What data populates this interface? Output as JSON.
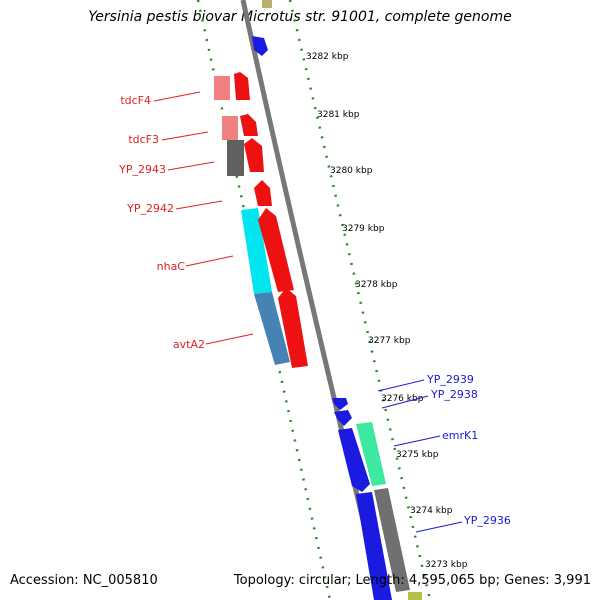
{
  "title": "Yersinia pestis biovar Microtus str. 91001, complete genome",
  "footer": {
    "accession": "Accession: NC_005810",
    "summary": "Topology: circular; Length: 4,595,065 bp; Genes: 3,991"
  },
  "colors": {
    "reverse_strand": "#ee1111",
    "forward_strand": "#1a1ae0",
    "backbone": "#888888",
    "ticks": "#228b22",
    "reverse_label": "#dd2222",
    "forward_label": "#1a1ad0"
  },
  "kbp_labels": [
    "3282 kbp",
    "3281 kbp",
    "3280 kbp",
    "3279 kbp",
    "3278 kbp",
    "3277 kbp",
    "3276 kbp",
    "3275 kbp",
    "3274 kbp",
    "3273 kbp"
  ],
  "reverse_genes": [
    "tdcF4",
    "tdcF3",
    "YP_2943",
    "YP_2942",
    "nhaC",
    "avtA2"
  ],
  "forward_genes": [
    "YP_2939",
    "YP_2938",
    "emrK1",
    "YP_2936"
  ]
}
